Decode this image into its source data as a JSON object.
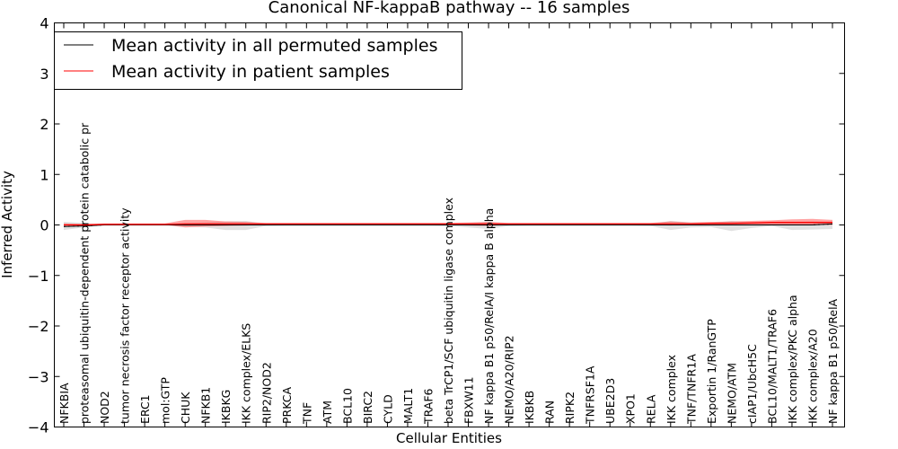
{
  "chart_data": {
    "type": "line",
    "title": "Canonical NF-kappaB pathway -- 16 samples",
    "xlabel": "Cellular Entities",
    "ylabel": "Inferred Activity",
    "ylim": [
      -4,
      4
    ],
    "yticks": [
      "−4",
      "−3",
      "−2",
      "−1",
      "0",
      "1",
      "2",
      "3",
      "4"
    ],
    "legend": {
      "placement": "top-left"
    },
    "categories": [
      "NFKBIA",
      "proteasomal ubiquitin-dependent protein catabolic pr",
      "NOD2",
      "tumor necrosis factor receptor activity",
      "ERC1",
      "mol:GTP",
      "CHUK",
      "NFKB1",
      "IKBKG",
      "IKK complex/ELKS",
      "RIP2/NOD2",
      "PRKCA",
      "TNF",
      "ATM",
      "BCL10",
      "BIRC2",
      "CYLD",
      "MALT1",
      "TRAF6",
      "beta TrCP1/SCF ubiquitin ligase complex",
      "FBXW11",
      "NF kappa B1 p50/RelA/I kappa B alpha",
      "NEMO/A20/RIP2",
      "IKBKB",
      "RAN",
      "RIPK2",
      "TNFRSF1A",
      "UBE2D3",
      "XPO1",
      "RELA",
      "IKK complex",
      "TNF/TNFR1A",
      "Exportin 1/RanGTP",
      "NEMO/ATM",
      "cIAP1/UbcH5C",
      "BCL10/MALT1/TRAF6",
      "IKK complex/PKC alpha",
      "IKK complex/A20",
      "NF kappa B1 p50/RelA"
    ],
    "series": [
      {
        "name": "Mean activity in all permuted samples",
        "color": "#000000",
        "values": [
          -0.03,
          -0.02,
          0.0,
          0.0,
          0.0,
          0.0,
          0.0,
          0.0,
          0.0,
          0.0,
          0.0,
          0.0,
          0.0,
          0.0,
          0.0,
          0.0,
          0.0,
          0.0,
          0.0,
          0.0,
          0.0,
          0.0,
          0.0,
          0.0,
          0.0,
          0.0,
          0.0,
          0.0,
          0.0,
          0.0,
          0.0,
          0.0,
          0.0,
          0.0,
          0.0,
          0.0,
          0.0,
          0.0,
          0.02
        ],
        "band_low": [
          -0.1,
          -0.05,
          0.0,
          0.0,
          0.0,
          0.0,
          -0.03,
          -0.05,
          -0.1,
          -0.1,
          -0.02,
          -0.01,
          -0.01,
          -0.01,
          -0.01,
          -0.01,
          -0.01,
          -0.01,
          -0.01,
          -0.02,
          -0.05,
          -0.08,
          -0.02,
          -0.01,
          -0.01,
          -0.01,
          -0.01,
          -0.01,
          -0.01,
          -0.02,
          -0.1,
          -0.05,
          -0.04,
          -0.12,
          -0.06,
          -0.02,
          -0.1,
          -0.09,
          -0.08
        ],
        "band_high": [
          0.06,
          0.04,
          0.0,
          0.0,
          0.0,
          0.0,
          0.03,
          0.05,
          0.07,
          0.08,
          0.02,
          0.01,
          0.01,
          0.01,
          0.01,
          0.01,
          0.01,
          0.01,
          0.01,
          0.02,
          0.04,
          0.06,
          0.02,
          0.01,
          0.01,
          0.01,
          0.01,
          0.01,
          0.01,
          0.02,
          0.08,
          0.05,
          0.04,
          0.08,
          0.05,
          0.04,
          0.06,
          0.07,
          0.06
        ]
      },
      {
        "name": "Mean activity in patient samples",
        "color": "#ff0000",
        "values": [
          0.0,
          0.0,
          0.01,
          0.01,
          0.01,
          0.01,
          0.02,
          0.02,
          0.02,
          0.02,
          0.02,
          0.02,
          0.02,
          0.02,
          0.02,
          0.02,
          0.02,
          0.02,
          0.02,
          0.02,
          0.02,
          0.02,
          0.02,
          0.02,
          0.02,
          0.02,
          0.02,
          0.02,
          0.02,
          0.02,
          0.02,
          0.02,
          0.03,
          0.03,
          0.04,
          0.05,
          0.05,
          0.05,
          0.05
        ],
        "band_low": [
          -0.01,
          -0.01,
          0.0,
          0.0,
          0.0,
          0.0,
          -0.05,
          -0.03,
          -0.02,
          -0.01,
          0.0,
          0.0,
          0.0,
          0.0,
          0.0,
          0.0,
          0.0,
          0.0,
          0.0,
          0.0,
          -0.01,
          -0.02,
          0.0,
          0.0,
          0.0,
          0.0,
          0.0,
          0.0,
          0.0,
          0.0,
          -0.01,
          0.0,
          0.0,
          0.0,
          0.0,
          0.0,
          0.0,
          0.0,
          0.0
        ],
        "band_high": [
          0.03,
          0.02,
          0.03,
          0.03,
          0.03,
          0.03,
          0.1,
          0.1,
          0.07,
          0.06,
          0.04,
          0.04,
          0.04,
          0.04,
          0.04,
          0.04,
          0.04,
          0.04,
          0.04,
          0.04,
          0.05,
          0.06,
          0.04,
          0.04,
          0.04,
          0.04,
          0.04,
          0.04,
          0.04,
          0.04,
          0.07,
          0.05,
          0.06,
          0.07,
          0.08,
          0.09,
          0.11,
          0.12,
          0.1
        ]
      }
    ]
  }
}
